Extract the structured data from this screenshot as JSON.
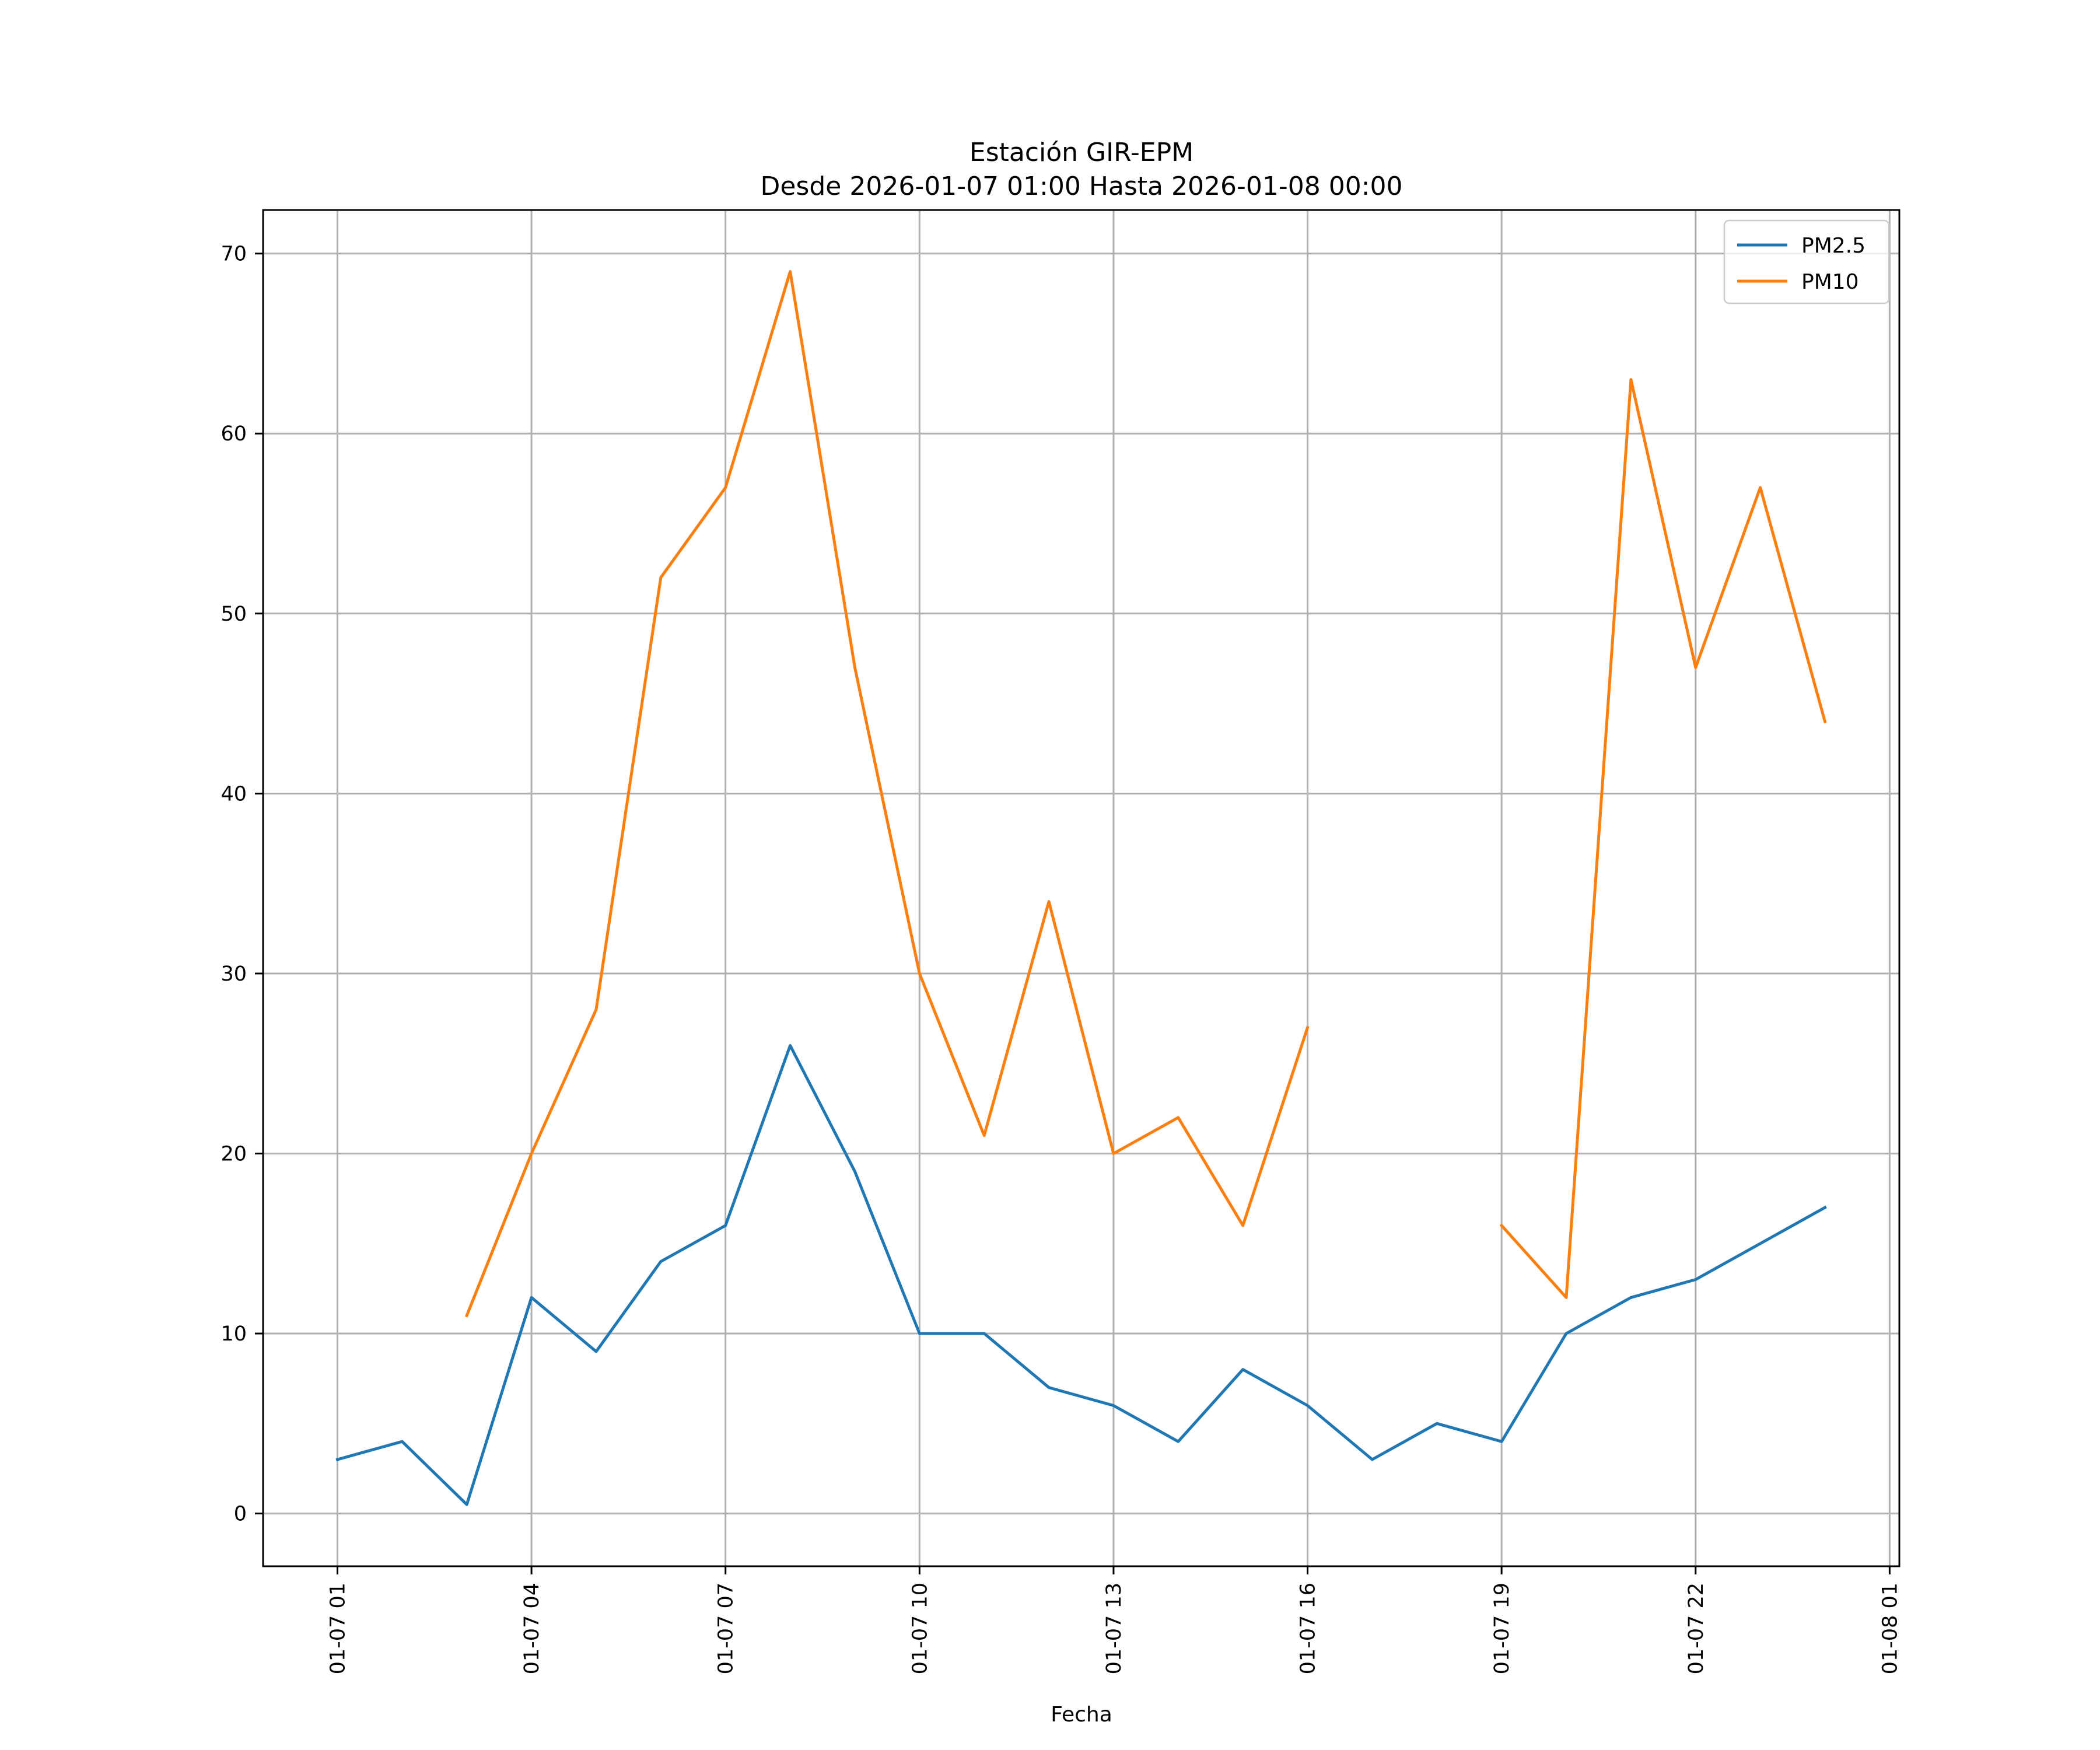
{
  "chart_data": {
    "type": "line",
    "title": "Estación GIR-EPM",
    "subtitle": "Desde 2026-01-07 01:00 Hasta 2026-01-08 00:00",
    "xlabel": "Fecha",
    "ylabel": "",
    "x": [
      "2026-01-07 01:00",
      "2026-01-07 02:00",
      "2026-01-07 03:00",
      "2026-01-07 04:00",
      "2026-01-07 05:00",
      "2026-01-07 06:00",
      "2026-01-07 07:00",
      "2026-01-07 08:00",
      "2026-01-07 09:00",
      "2026-01-07 10:00",
      "2026-01-07 11:00",
      "2026-01-07 12:00",
      "2026-01-07 13:00",
      "2026-01-07 14:00",
      "2026-01-07 15:00",
      "2026-01-07 16:00",
      "2026-01-07 17:00",
      "2026-01-07 18:00",
      "2026-01-07 19:00",
      "2026-01-07 20:00",
      "2026-01-07 21:00",
      "2026-01-07 22:00",
      "2026-01-07 23:00",
      "2026-01-08 00:00"
    ],
    "series": [
      {
        "name": "PM2.5",
        "color": "#1f77b4",
        "values": [
          3,
          4,
          0.5,
          12,
          9,
          14,
          16,
          26,
          19,
          10,
          10,
          7,
          6,
          4,
          8,
          6,
          3,
          5,
          4,
          10,
          12,
          13,
          15,
          17
        ]
      },
      {
        "name": "PM10",
        "color": "#ff7f0e",
        "values": [
          null,
          null,
          11,
          20,
          28,
          52,
          57,
          69,
          47,
          30,
          21,
          34,
          20,
          22,
          16,
          27,
          null,
          null,
          16,
          12,
          63,
          47,
          57,
          44
        ]
      }
    ],
    "xlim": [
      "2026-01-06 23:51",
      "2026-01-08 01:09"
    ],
    "ylim": [
      -2.93,
      72.42
    ],
    "xticks": [
      "01-07 01",
      "01-07 04",
      "01-07 07",
      "01-07 10",
      "01-07 13",
      "01-07 16",
      "01-07 19",
      "01-07 22",
      "01-08 01"
    ],
    "yticks": [
      0,
      10,
      20,
      30,
      40,
      50,
      60,
      70
    ],
    "grid": true,
    "legend_position": "upper right"
  }
}
